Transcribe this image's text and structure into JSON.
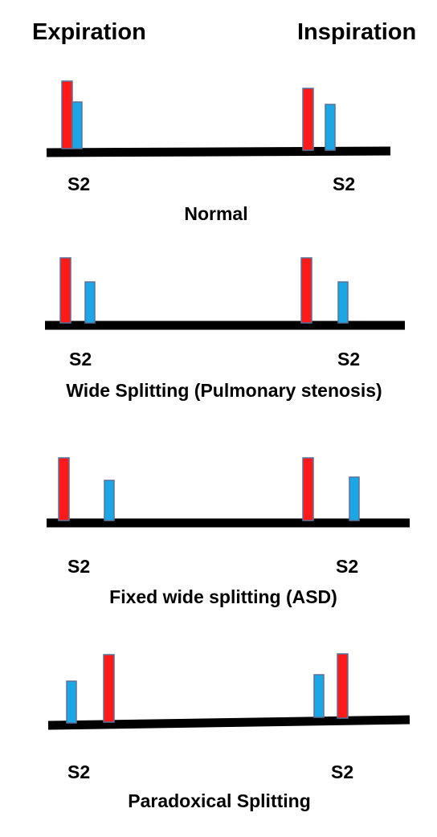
{
  "headers": {
    "left": "Expiration",
    "right": "Inspiration"
  },
  "colors": {
    "a2_red": "#ff1a1a",
    "p2_blue": "#1ba7e6",
    "outline": "#5a7299",
    "baseline": "#000000"
  },
  "panels": [
    {
      "caption": "Normal",
      "label_left": "S2",
      "label_right": "S2"
    },
    {
      "caption": "Wide Splitting (Pulmonary stenosis)",
      "label_left": "S2",
      "label_right": "S2"
    },
    {
      "caption": "Fixed wide splitting (ASD)",
      "label_left": "S2",
      "label_right": "S2"
    },
    {
      "caption": "Paradoxical Splitting",
      "label_left": "S2",
      "label_right": "S2"
    }
  ]
}
